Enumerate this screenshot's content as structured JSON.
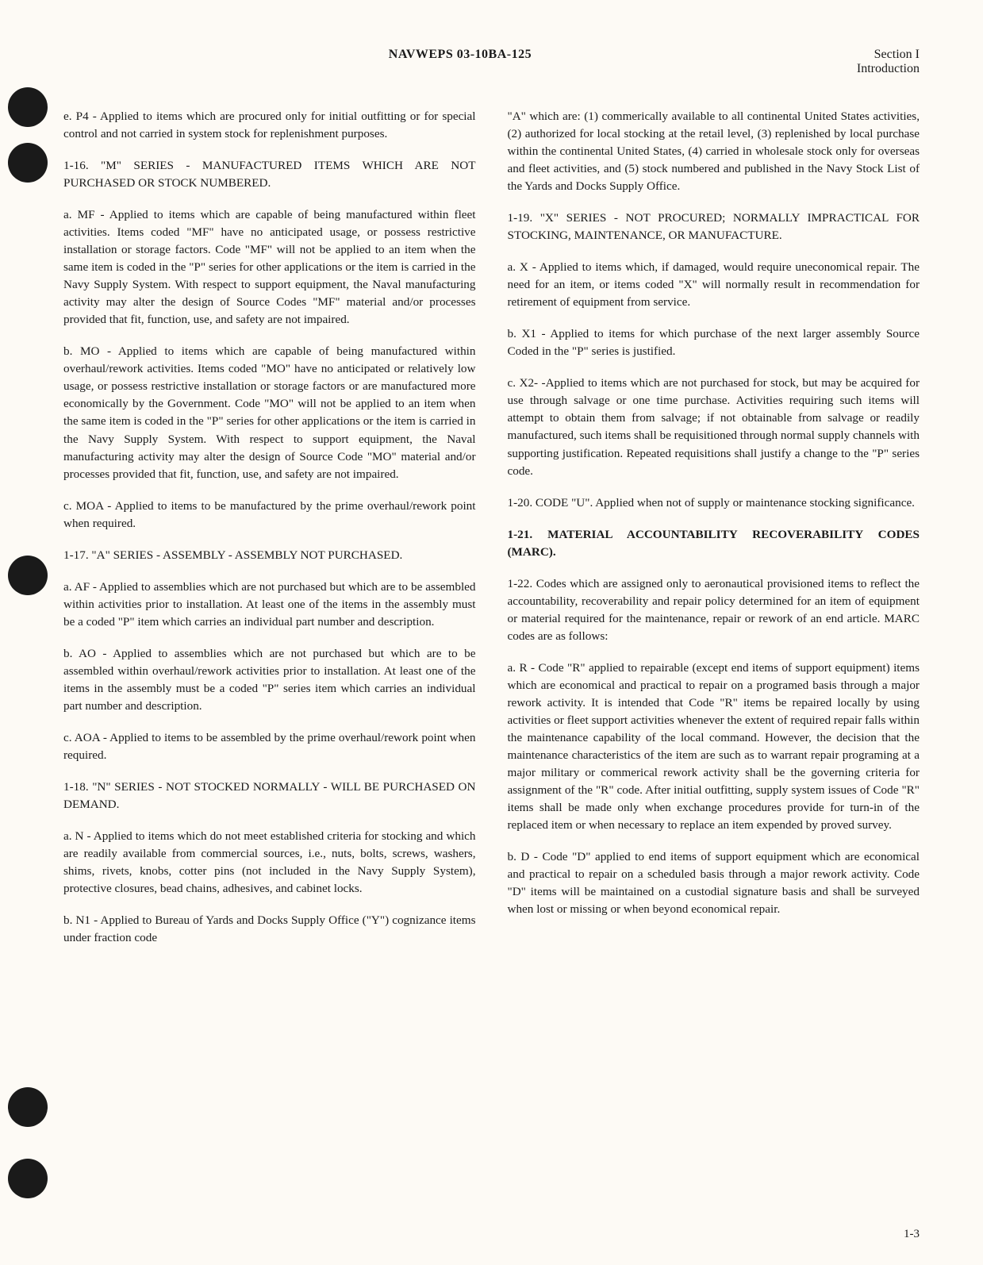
{
  "header": {
    "center": "NAVWEPS 03-10BA-125",
    "right_line1": "Section I",
    "right_line2": "Introduction"
  },
  "holes": [
    110,
    180,
    700,
    1370,
    1460
  ],
  "left_col": {
    "p1": "e. P4 - Applied to items which are procured only for initial outfitting or for special control and not carried in system stock for replenishment purposes.",
    "p2": "1-16. \"M\" SERIES - MANUFACTURED ITEMS WHICH ARE NOT PURCHASED OR STOCK NUMBERED.",
    "p3": "a. MF - Applied to items which are capable of being manufactured within fleet activities. Items coded \"MF\" have no anticipated usage, or possess restrictive installation or storage factors. Code \"MF\" will not be applied to an item when the same item is coded in the \"P\" series for other applications or the item is carried in the Navy Supply System. With respect to support equipment, the Naval manufacturing activity may alter the design of Source Codes \"MF\" material and/or processes provided that fit, function, use, and safety are not impaired.",
    "p4": "b. MO - Applied to items which are capable of being manufactured within overhaul/rework activities. Items coded \"MO\" have no anticipated or relatively low usage, or possess restrictive installation or storage factors or are manufactured more economically by the Government. Code \"MO\" will not be applied to an item when the same item is coded in the \"P\" series for other applications or the item is carried in the Navy Supply System. With respect to support equipment, the Naval manufacturing activity may alter the design of Source Code \"MO\" material and/or processes provided that fit, function, use, and safety are not impaired.",
    "p5": "c. MOA - Applied to items to be manufactured by the prime overhaul/rework point when required.",
    "p6": "1-17. \"A\" SERIES - ASSEMBLY - ASSEMBLY NOT PURCHASED.",
    "p7": "a. AF - Applied to assemblies which are not purchased but which are to be assembled within activities prior to installation. At least one of the items in the assembly must be a coded \"P\" item which carries an individual part number and description.",
    "p8": "b. AO - Applied to assemblies which are not purchased but which are to be assembled within overhaul/rework activities prior to installation. At least one of the items in the assembly must be a coded \"P\" series item which carries an individual part number and description.",
    "p9": "c. AOA - Applied to items to be assembled by the prime overhaul/rework point when required.",
    "p10": "1-18. \"N\" SERIES - NOT STOCKED NORMALLY - WILL BE PURCHASED ON DEMAND.",
    "p11": "a. N - Applied to items which do not meet established criteria for stocking and which are readily available from commercial sources, i.e., nuts, bolts, screws, washers, shims, rivets, knobs, cotter pins (not included in the Navy Supply System), protective closures, bead chains, adhesives, and cabinet locks.",
    "p12": "b. N1 - Applied to Bureau of Yards and Docks Supply Office (\"Y\") cognizance items under fraction code"
  },
  "right_col": {
    "p1": "\"A\" which are: (1) commerically available to all continental United States activities, (2) authorized for local stocking at the retail level, (3) replenished by local purchase within the continental United States, (4) carried in wholesale stock only for overseas and fleet activities, and (5) stock numbered and published in the Navy Stock List of the Yards and Docks Supply Office.",
    "p2": "1-19. \"X\" SERIES - NOT PROCURED; NORMALLY IMPRACTICAL FOR STOCKING, MAINTENANCE, OR MANUFACTURE.",
    "p3": "a. X - Applied to items which, if damaged, would require uneconomical repair. The need for an item, or items coded \"X\" will normally result in recommendation for retirement of equipment from service.",
    "p4": "b. X1 - Applied to items for which purchase of the next larger assembly Source Coded in the \"P\" series is justified.",
    "p5": "c. X2- -Applied to items which are not purchased for stock, but may be acquired for use through salvage or one time purchase. Activities requiring such items will attempt to obtain them from salvage; if not obtainable from salvage or readily manufactured, such items shall be requisitioned through normal supply channels with supporting justification. Repeated requisitions shall justify a change to the \"P\" series code.",
    "p6": "1-20. CODE \"U\". Applied when not of supply or maintenance stocking significance.",
    "heading": "1-21. MATERIAL ACCOUNTABILITY RECOVERABILITY CODES (MARC).",
    "p7": "1-22. Codes which are assigned only to aeronautical provisioned items to reflect the accountability, recoverability and repair policy determined for an item of equipment or material required for the maintenance, repair or rework of an end article. MARC codes are as follows:",
    "p8": "a. R - Code \"R\" applied to repairable (except end items of support equipment) items which are economical and practical to repair on a programed basis through a major rework activity. It is intended that Code \"R\" items be repaired locally by using activities or fleet support activities whenever the extent of required repair falls within the maintenance capability of the local command. However, the decision that the maintenance characteristics of the item are such as to warrant repair programing at a major military or commerical rework activity shall be the governing criteria for assignment of the \"R\" code. After initial outfitting, supply system issues of Code \"R\" items shall be made only when exchange procedures provide for turn-in of the replaced item or when necessary to replace an item expended by proved survey.",
    "p9": "b. D - Code \"D\" applied to end items of support equipment which are economical and practical to repair on a scheduled basis through a major rework activity. Code \"D\" items will be maintained on a custodial signature basis and shall be surveyed when lost or missing or when beyond economical repair."
  },
  "page_number": "1-3"
}
